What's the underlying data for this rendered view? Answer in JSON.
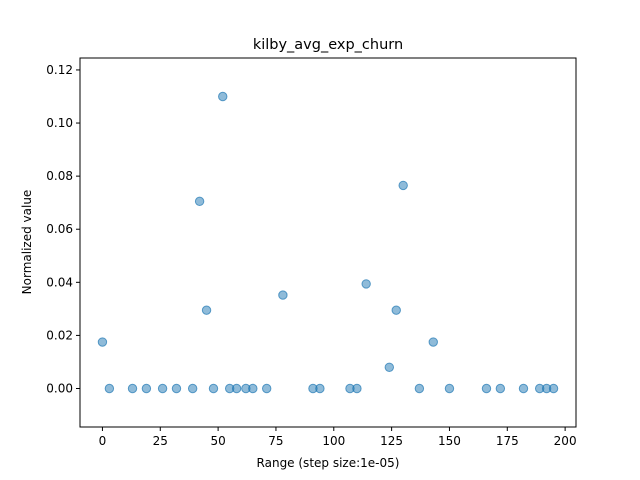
{
  "chart_data": {
    "type": "scatter",
    "title": "kilby_avg_exp_churn",
    "xlabel": "Range (step size:1e-05)",
    "ylabel": "Normalized value",
    "xlim": [
      -9.7,
      204.7
    ],
    "ylim": [
      -0.0145,
      0.1245
    ],
    "xticks": [
      0,
      25,
      50,
      75,
      100,
      125,
      150,
      175,
      200
    ],
    "xtick_labels": [
      "0",
      "25",
      "50",
      "75",
      "100",
      "125",
      "150",
      "175",
      "200"
    ],
    "yticks": [
      0.0,
      0.02,
      0.04,
      0.06,
      0.08,
      0.1,
      0.12
    ],
    "ytick_labels": [
      "0.00",
      "0.02",
      "0.04",
      "0.06",
      "0.08",
      "0.10",
      "0.12"
    ],
    "grid": false,
    "color": "#1f77b4",
    "points": [
      {
        "x": 0,
        "y": 0.0175
      },
      {
        "x": 3,
        "y": 0.0
      },
      {
        "x": 13,
        "y": 0.0
      },
      {
        "x": 19,
        "y": 0.0
      },
      {
        "x": 26,
        "y": 0.0
      },
      {
        "x": 32,
        "y": 0.0
      },
      {
        "x": 39,
        "y": 0.0
      },
      {
        "x": 42,
        "y": 0.0705
      },
      {
        "x": 45,
        "y": 0.0295
      },
      {
        "x": 48,
        "y": 0.0
      },
      {
        "x": 52,
        "y": 0.11
      },
      {
        "x": 55,
        "y": 0.0
      },
      {
        "x": 58,
        "y": 0.0
      },
      {
        "x": 62,
        "y": 0.0
      },
      {
        "x": 65,
        "y": 0.0
      },
      {
        "x": 71,
        "y": 0.0
      },
      {
        "x": 78,
        "y": 0.0352
      },
      {
        "x": 91,
        "y": 0.0
      },
      {
        "x": 94,
        "y": 0.0
      },
      {
        "x": 107,
        "y": 0.0
      },
      {
        "x": 110,
        "y": 0.0
      },
      {
        "x": 114,
        "y": 0.0394
      },
      {
        "x": 124,
        "y": 0.008
      },
      {
        "x": 127,
        "y": 0.0295
      },
      {
        "x": 130,
        "y": 0.0765
      },
      {
        "x": 137,
        "y": 0.0
      },
      {
        "x": 143,
        "y": 0.0175
      },
      {
        "x": 150,
        "y": 0.0
      },
      {
        "x": 166,
        "y": 0.0
      },
      {
        "x": 172,
        "y": 0.0
      },
      {
        "x": 182,
        "y": 0.0
      },
      {
        "x": 189,
        "y": 0.0
      },
      {
        "x": 192,
        "y": 0.0
      },
      {
        "x": 195,
        "y": 0.0
      }
    ]
  }
}
